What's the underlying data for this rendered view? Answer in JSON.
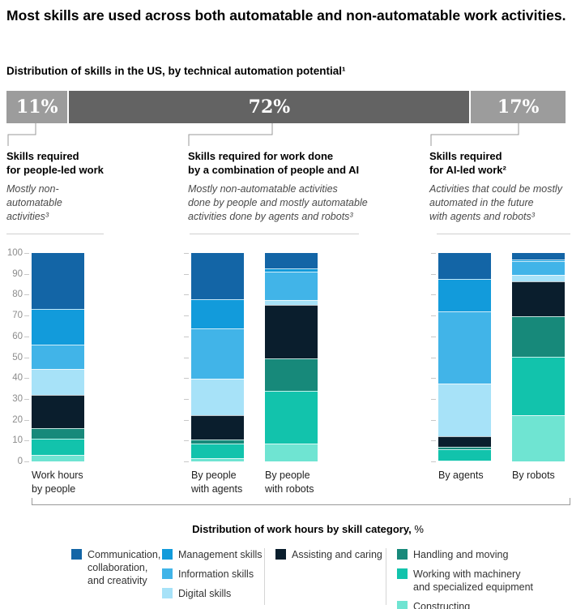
{
  "title": "Most skills are used across both automatable and non-automatable work activities.",
  "subtitle": "Distribution of skills in the US, by technical automation potential¹",
  "pct_bar": {
    "segments": [
      {
        "label": "11%",
        "value": 11,
        "color": "#9c9c9c"
      },
      {
        "label": "72%",
        "value": 72,
        "color": "#636363"
      },
      {
        "label": "17%",
        "value": 17,
        "color": "#9c9c9c"
      }
    ]
  },
  "annotations": [
    {
      "pct": "11%",
      "header_lines": [
        "Skills required",
        "for people-led work"
      ],
      "desc_lines": [
        "Mostly non-",
        "automatable",
        "activities³"
      ]
    },
    {
      "pct": "72%",
      "header_lines": [
        "Skills required for work done",
        "by a combination of people and AI"
      ],
      "desc_lines": [
        "Mostly non-automatable activities",
        "done by people and mostly automatable",
        "activities done by agents and robots³"
      ]
    },
    {
      "pct": "17%",
      "header_lines": [
        "Skills required",
        "for AI-led work²"
      ],
      "desc_lines": [
        "Activities that could be mostly",
        "automated in the future",
        "with agents and robots³"
      ]
    }
  ],
  "chart_data": {
    "type": "bar",
    "stacked": true,
    "unit": "%",
    "ylim": [
      0,
      100
    ],
    "yticks": [
      0,
      10,
      20,
      30,
      40,
      50,
      60,
      70,
      80,
      90,
      100
    ],
    "grid": false,
    "legend_position": "bottom",
    "categories": [
      "Work hours by people",
      "By people with agents",
      "By people with robots",
      "By agents",
      "By robots"
    ],
    "series": [
      {
        "name": "Communication, collaboration, and creativity",
        "color": "#1365a6",
        "values": [
          27,
          22,
          7.5,
          12.5,
          3
        ]
      },
      {
        "name": "Management skills",
        "color": "#129bdb",
        "values": [
          17,
          14,
          1.5,
          15.5,
          1
        ]
      },
      {
        "name": "Information skills",
        "color": "#41b4e8",
        "values": [
          11.5,
          24.5,
          13.5,
          34.5,
          6.5
        ]
      },
      {
        "name": "Digital skills",
        "color": "#a7e2f8",
        "values": [
          12.5,
          17.5,
          2.5,
          25.5,
          3
        ]
      },
      {
        "name": "Assisting and caring",
        "color": "#0a1e2d",
        "values": [
          16,
          11.5,
          25.5,
          5,
          17
        ]
      },
      {
        "name": "Handling and moving",
        "color": "#17897a",
        "values": [
          5,
          2,
          15.5,
          1,
          19.5
        ]
      },
      {
        "name": "Working with machinery and specialized equipment",
        "color": "#12c3ac",
        "values": [
          8,
          7,
          25.5,
          5.5,
          28
        ]
      },
      {
        "name": "Constructing",
        "color": "#6fe4d2",
        "values": [
          3,
          1.5,
          8.5,
          0.5,
          22
        ]
      }
    ]
  },
  "legend": {
    "title_bold": "Distribution of work hours by skill category,",
    "title_unit": " %",
    "columns": [
      {
        "items": [
          {
            "label": "Communication, collaboration, and creativity",
            "color": "#1365a6"
          }
        ]
      },
      {
        "items": [
          {
            "label": "Management skills",
            "color": "#129bdb"
          },
          {
            "label": "Information skills",
            "color": "#41b4e8"
          },
          {
            "label": "Digital skills",
            "color": "#a7e2f8"
          }
        ]
      },
      {
        "items": [
          {
            "label": "Assisting and caring",
            "color": "#0a1e2d"
          }
        ]
      },
      {
        "items": [
          {
            "label": "Handling and moving",
            "color": "#17897a"
          },
          {
            "label": "Working with machinery and specialized equipment",
            "color": "#12c3ac"
          },
          {
            "label": "Constructing",
            "color": "#6fe4d2"
          }
        ]
      }
    ]
  }
}
